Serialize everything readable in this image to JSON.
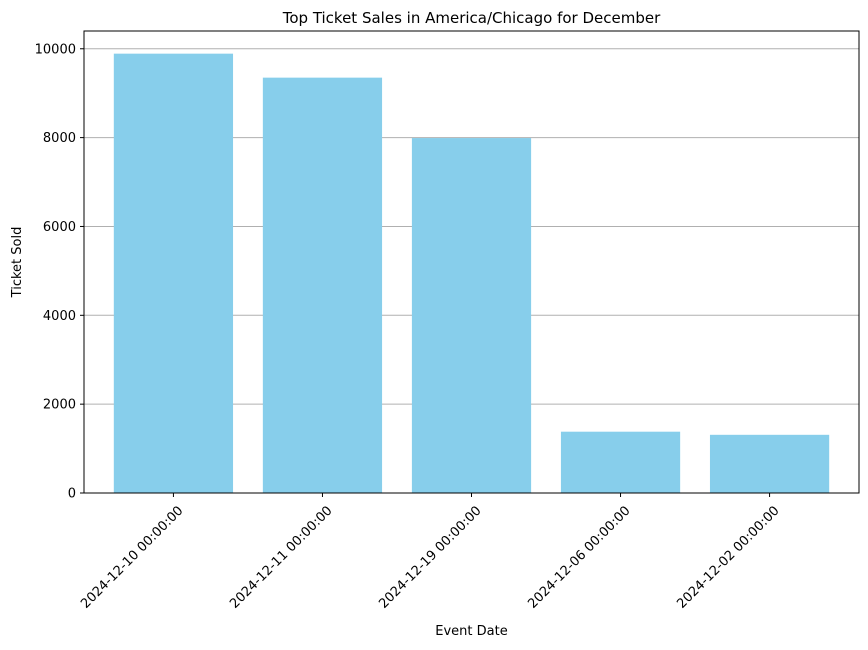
{
  "chart_data": {
    "type": "bar",
    "title": "Top Ticket Sales in America/Chicago for December",
    "xlabel": "Event Date",
    "ylabel": "Ticket Sold",
    "categories": [
      "2024-12-10 00:00:00",
      "2024-12-11 00:00:00",
      "2024-12-19 00:00:00",
      "2024-12-06 00:00:00",
      "2024-12-02 00:00:00"
    ],
    "values": [
      9890,
      9350,
      7990,
      1380,
      1310
    ],
    "ylim": [
      0,
      10400
    ],
    "yticks": [
      "0",
      "2000",
      "4000",
      "6000",
      "8000",
      "10000"
    ],
    "grid": "y-axis",
    "x_tick_rotation": "45 degrees",
    "bar_color": "#87CEEB",
    "grid_color": "#b0b0b0"
  }
}
